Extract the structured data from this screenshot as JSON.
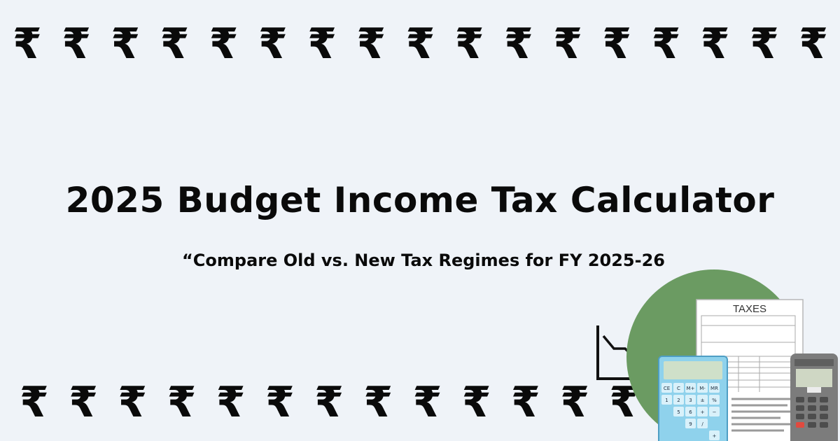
{
  "decor": {
    "symbol": "₹",
    "top_row_count": 17,
    "bottom_row_count": 17
  },
  "header": {
    "title": "2025 Budget Income Tax Calculator",
    "subtitle": "“Compare Old vs. New Tax Regimes for FY 2025-26"
  },
  "illustration": {
    "document_label": "TAXES",
    "calculator_keys": [
      "CE",
      "C",
      "M+",
      "M-",
      "MR",
      "1",
      "2",
      "3",
      "±",
      "%",
      "5",
      "6",
      "+",
      "−",
      "9",
      "/",
      "+"
    ],
    "circle_color": "#6b9b62",
    "calculator_color": "#8fd2ec",
    "icons": [
      "downtrend-chart-icon",
      "tax-document-icon",
      "calculator-icon",
      "card-terminal-icon"
    ]
  },
  "colors": {
    "background": "#eff3f8",
    "text": "#0a0a0a"
  }
}
